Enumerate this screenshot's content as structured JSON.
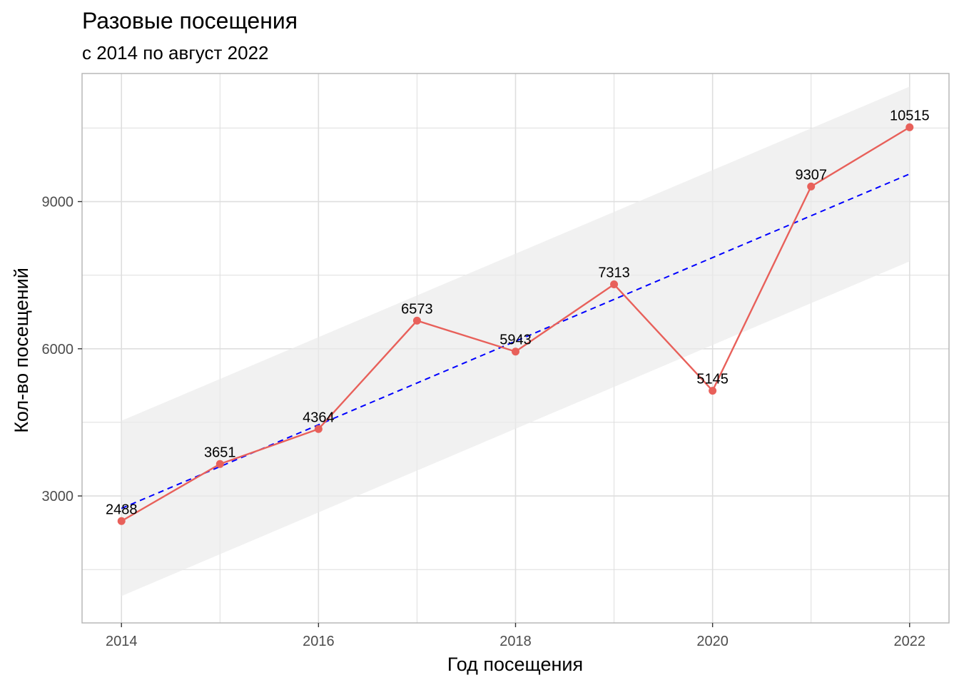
{
  "chart_data": {
    "type": "line",
    "title": "Разовые посещения",
    "subtitle": "с 2014 по август 2022",
    "xlabel": "Год посещения",
    "ylabel": "Кол-во посещений",
    "x": [
      2014,
      2015,
      2016,
      2017,
      2018,
      2019,
      2020,
      2021,
      2022
    ],
    "series": [
      {
        "values": [
          2488,
          3651,
          4364,
          6573,
          5943,
          7313,
          5145,
          9307,
          10515
        ]
      }
    ],
    "data_labels": [
      "2488",
      "3651",
      "4364",
      "6573",
      "5943",
      "7313",
      "5145",
      "9307",
      "10515"
    ],
    "x_ticks": [
      2014,
      2016,
      2018,
      2020,
      2022
    ],
    "x_tick_labels": [
      "2014",
      "2016",
      "2018",
      "2020",
      "2022"
    ],
    "y_ticks": [
      3000,
      6000,
      9000
    ],
    "y_tick_labels": [
      "3000",
      "6000",
      "9000"
    ],
    "xlim": [
      2013.6,
      2022.4
    ],
    "ylim": [
      412,
      11611
    ],
    "trend": {
      "style": "dashed",
      "start": [
        2014,
        2746
      ],
      "end": [
        2022,
        9563
      ],
      "confidence_band": {
        "upper_start": 4533,
        "upper_end": 11344,
        "lower_start": 959,
        "lower_end": 7782
      }
    },
    "grid": true,
    "legend": "none",
    "colors": {
      "series": "#e8605a",
      "trend": "#0000ff",
      "band": "#ebebeb",
      "grid": "#dedede",
      "panel_border": "#b3b3b3"
    }
  }
}
